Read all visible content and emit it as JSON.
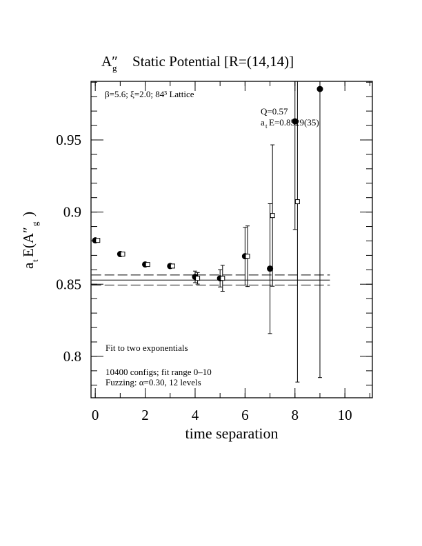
{
  "chart_data": {
    "type": "scatter",
    "title_symbol": "A″",
    "title_subscript": "g",
    "title_text": "Static Potential [R=(14,14)]",
    "x_label": "time separation",
    "y_label_a": "a",
    "y_label_t": "t",
    "y_label_e": "E(A″",
    "y_label_g": "g",
    "y_label_close": ")",
    "annotation_lattice": "β=5.6; ξ=2.0; 84³ Lattice",
    "annotation_q": "Q=0.57",
    "annotation_energy_a": "a",
    "annotation_energy_t": "t",
    "annotation_energy_rest": "E=0.8529(35)",
    "annotation_fit": "Fit to two exponentials",
    "annotation_configs": "10400 configs; fit range 0–10",
    "annotation_fuzzing": "Fuzzing: α=0.30, 12 levels",
    "xlim": [
      -0.17,
      11.1
    ],
    "ylim": [
      0.7713,
      0.9906
    ],
    "xticks": [
      0,
      2,
      4,
      6,
      8,
      10
    ],
    "yticks": [
      0.8,
      0.85,
      0.9,
      0.95
    ],
    "x_minor_step": 1,
    "y_minor_step": 0.01,
    "series": [
      {
        "marker": "filled-circle",
        "color": "#000000",
        "x": [
          0,
          1,
          2,
          3,
          4,
          5,
          6,
          7,
          8,
          9
        ],
        "values": [
          0.8804,
          0.8709,
          0.8637,
          0.8626,
          0.8551,
          0.8541,
          0.8694,
          0.8608,
          0.9629,
          0.9853
        ],
        "errors": [
          0.0012,
          0.0012,
          0.0012,
          0.0014,
          0.004,
          0.006,
          0.02,
          0.045,
          0.075,
          0.2
        ]
      },
      {
        "marker": "open-square",
        "color": "#000000",
        "x": [
          0.1,
          1.1,
          2.1,
          3.1,
          4.1,
          5.1,
          6.1,
          7.1,
          8.1
        ],
        "values": [
          0.8804,
          0.8709,
          0.8637,
          0.8626,
          0.8541,
          0.8541,
          0.8694,
          0.8976,
          0.9072
        ],
        "errors": [
          0.001,
          0.001,
          0.0012,
          0.0012,
          0.004,
          0.009,
          0.021,
          0.049,
          0.125
        ]
      }
    ],
    "fit": {
      "value": 0.8529,
      "error": 0.0035,
      "x": [
        -0.15,
        9.4
      ]
    }
  }
}
